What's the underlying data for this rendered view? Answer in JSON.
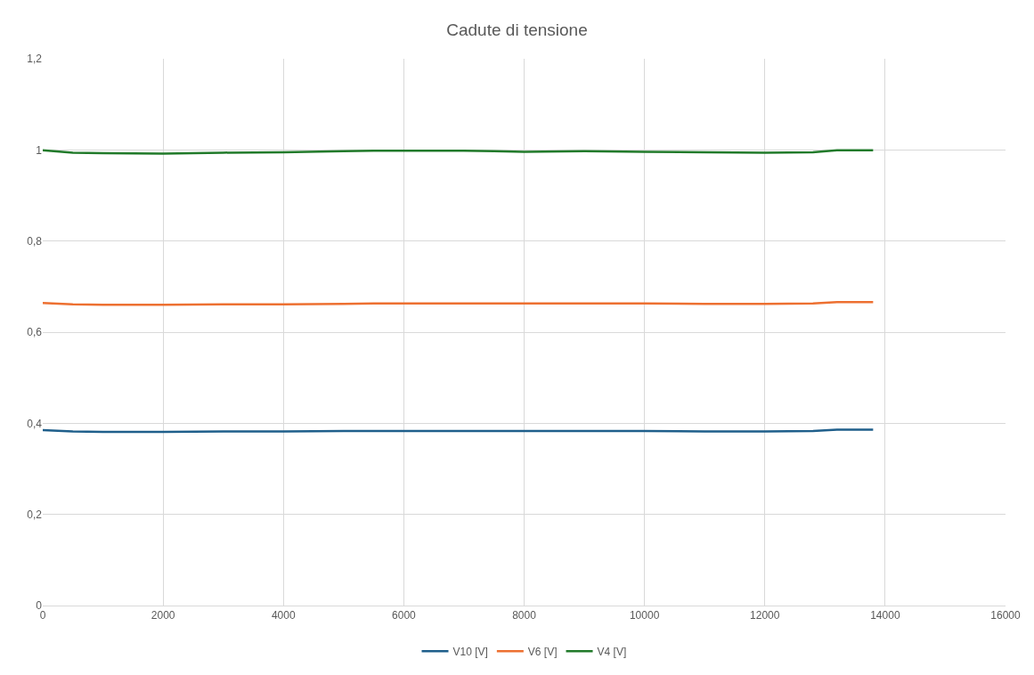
{
  "chart_data": {
    "type": "line",
    "title": "Cadute di tensione",
    "x": [
      0,
      500,
      1000,
      2000,
      3000,
      4000,
      5000,
      5500,
      6000,
      7000,
      7500,
      8000,
      9000,
      10000,
      11000,
      12000,
      12800,
      13200,
      13800
    ],
    "series": [
      {
        "name": "V10 [V]",
        "color": "#1f5f8b",
        "values": [
          0.385,
          0.382,
          0.381,
          0.381,
          0.382,
          0.382,
          0.383,
          0.383,
          0.383,
          0.383,
          0.383,
          0.383,
          0.383,
          0.383,
          0.382,
          0.382,
          0.383,
          0.386,
          0.386
        ]
      },
      {
        "name": "V6 [V]",
        "color": "#ed7031",
        "values": [
          0.664,
          0.661,
          0.66,
          0.66,
          0.661,
          0.661,
          0.662,
          0.663,
          0.663,
          0.663,
          0.663,
          0.663,
          0.663,
          0.663,
          0.662,
          0.662,
          0.663,
          0.666,
          0.666
        ]
      },
      {
        "name": "V4 [V]",
        "color": "#217a2a",
        "values": [
          0.999,
          0.994,
          0.993,
          0.992,
          0.994,
          0.995,
          0.997,
          0.998,
          0.998,
          0.998,
          0.997,
          0.996,
          0.997,
          0.996,
          0.995,
          0.994,
          0.995,
          0.999,
          0.999
        ]
      }
    ],
    "xlim": [
      0,
      16000
    ],
    "xticks": [
      0,
      2000,
      4000,
      6000,
      8000,
      10000,
      12000,
      14000,
      16000
    ],
    "ylim": [
      0,
      1.2
    ],
    "yticks": [
      {
        "value": 0,
        "label": "0"
      },
      {
        "value": 0.2,
        "label": "0,2"
      },
      {
        "value": 0.4,
        "label": "0,4"
      },
      {
        "value": 0.6,
        "label": "0,6"
      },
      {
        "value": 0.8,
        "label": "0,8"
      },
      {
        "value": 1,
        "label": "1"
      },
      {
        "value": 1.2,
        "label": "1,2"
      }
    ],
    "grid": true,
    "legend": "bottom",
    "marker": "none",
    "line_style": "solid"
  }
}
